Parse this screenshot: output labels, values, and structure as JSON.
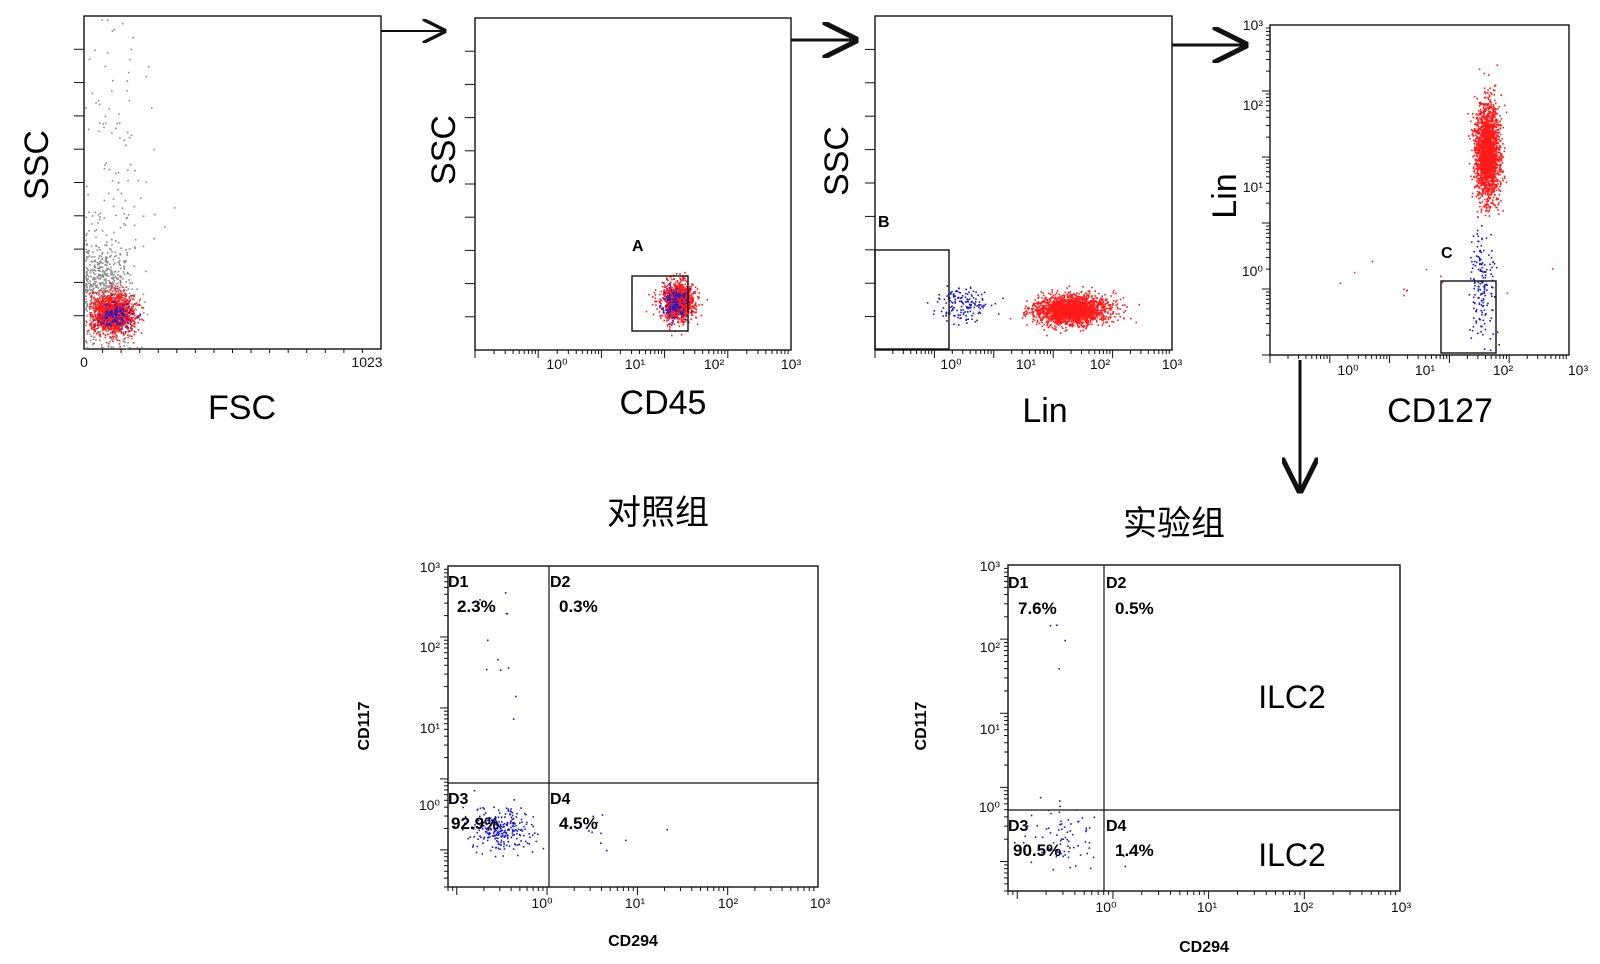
{
  "colors": {
    "population": "#ff1a1a",
    "gated": "#1a1acc",
    "debris": "#8c8c8c",
    "axis": "#111111"
  },
  "chart_data": [
    {
      "type": "scatter",
      "panel": "fsc-ssc",
      "xlabel": "FSC",
      "ylabel": "SSC",
      "xlim": [
        0,
        1023
      ],
      "x_tick_labels": [
        "0",
        "1023"
      ],
      "series": [
        {
          "color": "#8c8c8c",
          "clusters": [
            {
              "x": 70,
              "y": 180,
              "sx": 50,
              "sy": 80,
              "n": 700
            },
            {
              "x": 120,
              "y": 560,
              "sx": 70,
              "sy": 260,
              "n": 140
            }
          ]
        },
        {
          "color": "#ff1a1a",
          "clusters": [
            {
              "x": 100,
              "y": 110,
              "sx": 35,
              "sy": 30,
              "n": 1400
            }
          ]
        },
        {
          "color": "#1a1acc",
          "clusters": [
            {
              "x": 105,
              "y": 105,
              "sx": 28,
              "sy": 22,
              "n": 140
            }
          ]
        }
      ]
    },
    {
      "type": "scatter",
      "panel": "cd45-ssc",
      "xlabel": "CD45",
      "ylabel": "SSC",
      "x_scale": "log",
      "xlim": [
        0.01,
        1000
      ],
      "x_tick_labels": [
        "10⁰",
        "10¹",
        "10²",
        "10³"
      ],
      "gates": [
        {
          "label": "A",
          "x": [
            10,
            47
          ],
          "y": [
            60,
            230
          ]
        }
      ],
      "series": [
        {
          "color": "#ff1a1a",
          "clusters": [
            {
              "x": 16,
              "y": 150,
              "sx": 0.13,
              "sy": 30,
              "n": 1200
            }
          ]
        },
        {
          "color": "#1a1acc",
          "clusters": [
            {
              "x": 14,
              "y": 145,
              "sx": 0.1,
              "sy": 25,
              "n": 150
            }
          ]
        }
      ]
    },
    {
      "type": "scatter",
      "panel": "lin-ssc",
      "xlabel": "Lin",
      "ylabel": "SSC",
      "x_scale": "log",
      "xlim": [
        0.01,
        1000
      ],
      "x_tick_labels": [
        "10⁰",
        "10¹",
        "10²",
        "10³"
      ],
      "gates": [
        {
          "label": "B",
          "x": [
            0.01,
            1
          ],
          "y": [
            60,
            360
          ]
        }
      ],
      "series": [
        {
          "color": "#ff1a1a",
          "clusters": [
            {
              "x": 20,
              "y": 125,
              "sx": 0.3,
              "sy": 22,
              "n": 2200
            }
          ]
        },
        {
          "color": "#1a1acc",
          "clusters": [
            {
              "x": 0.3,
              "y": 140,
              "sx": 0.25,
              "sy": 25,
              "n": 160
            }
          ]
        }
      ]
    },
    {
      "type": "scatter",
      "panel": "cd127-lin",
      "xlabel": "CD127",
      "ylabel": "Lin",
      "x_scale": "log",
      "y_scale": "log",
      "xlim": [
        0.01,
        1000
      ],
      "ylim": [
        0.01,
        1000
      ],
      "x_tick_labels": [
        "10⁰",
        "10¹",
        "10²",
        "10³"
      ],
      "y_tick_labels": [
        "10⁰",
        "10¹",
        "10²",
        "10³"
      ],
      "gates": [
        {
          "label": "C",
          "x": [
            18,
            80
          ],
          "y": [
            0.011,
            0.9
          ]
        }
      ],
      "series": [
        {
          "color": "#ff1a1a",
          "clusters": [
            {
              "x": 42,
              "y": 12,
              "sx": 0.1,
              "sy": 0.35,
              "n": 2200
            },
            {
              "x": 4,
              "y": 0.12,
              "sx": 0.9,
              "sy": 0.15,
              "n": 12
            }
          ]
        },
        {
          "color": "#1a1acc",
          "clusters": [
            {
              "x": 35,
              "y": 0.1,
              "sx": 0.1,
              "sy": 0.4,
              "n": 170
            }
          ]
        }
      ]
    },
    {
      "type": "scatter",
      "panel": "control-cd294-cd117",
      "title": "对照组",
      "xlabel": "CD294",
      "ylabel": "CD117",
      "x_scale": "log",
      "y_scale": "log",
      "xlim": [
        0.08,
        1000
      ],
      "ylim": [
        0.03,
        1000
      ],
      "x_tick_labels": [
        "10⁰",
        "10¹",
        "10²",
        "10³"
      ],
      "y_tick_labels": [
        "10⁰",
        "10¹",
        "10²",
        "10³"
      ],
      "quadrant_split": {
        "x": 1,
        "y": 0.7
      },
      "quadrants": [
        {
          "id": "D1",
          "percent": "2.3%"
        },
        {
          "id": "D2",
          "percent": "0.3%"
        },
        {
          "id": "D3",
          "percent": "92.9%"
        },
        {
          "id": "D4",
          "percent": "4.5%"
        }
      ],
      "series": [
        {
          "color": "#1a1acc",
          "clusters": [
            {
              "x": 0.3,
              "y": 0.2,
              "sx": 0.17,
              "sy": 0.16,
              "n": 260
            },
            {
              "x": 0.3,
              "y": 60,
              "sx": 0.1,
              "sy": 0.65,
              "n": 12
            },
            {
              "x": 3,
              "y": 0.22,
              "sx": 0.25,
              "sy": 0.2,
              "n": 12
            }
          ]
        }
      ]
    },
    {
      "type": "scatter",
      "panel": "experiment-cd294-cd117",
      "title": "实验组",
      "xlabel": "CD294",
      "ylabel": "CD117",
      "x_scale": "log",
      "y_scale": "log",
      "xlim": [
        0.08,
        1000
      ],
      "ylim": [
        0.04,
        1000
      ],
      "x_tick_labels": [
        "10⁰",
        "10¹",
        "10²",
        "10³"
      ],
      "y_tick_labels": [
        "10⁰",
        "10¹",
        "10²",
        "10³"
      ],
      "quadrant_split": {
        "x": 1,
        "y": 0.7
      },
      "quadrants": [
        {
          "id": "D1",
          "percent": "7.6%"
        },
        {
          "id": "D2",
          "percent": "0.5%"
        },
        {
          "id": "D3",
          "percent": "90.5%"
        },
        {
          "id": "D4",
          "percent": "1.4%"
        }
      ],
      "annotations": [
        "ILC2",
        "ILC2"
      ],
      "series": [
        {
          "color": "#1a1acc",
          "clusters": [
            {
              "x": 0.3,
              "y": 0.2,
              "sx": 0.22,
              "sy": 0.2,
              "n": 80
            },
            {
              "x": 0.3,
              "y": 120,
              "sx": 0.12,
              "sy": 0.18,
              "n": 4
            }
          ]
        }
      ]
    }
  ]
}
